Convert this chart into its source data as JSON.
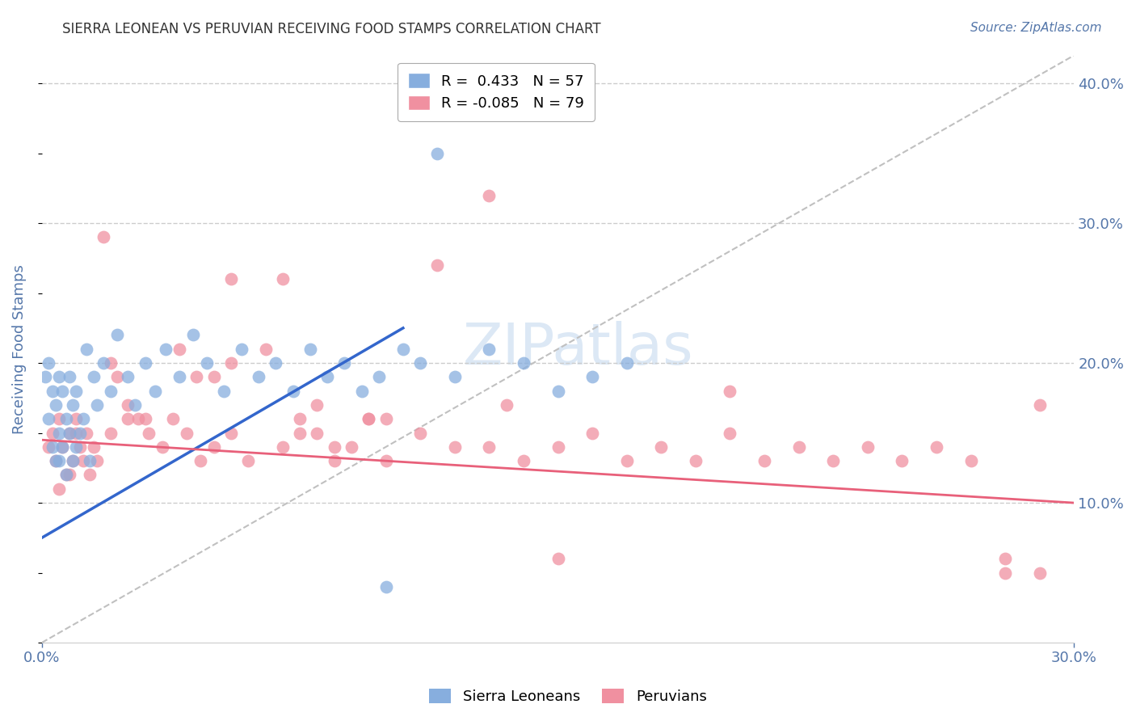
{
  "title": "SIERRA LEONEAN VS PERUVIAN RECEIVING FOOD STAMPS CORRELATION CHART",
  "source": "Source: ZipAtlas.com",
  "ylabel": "Receiving Food Stamps",
  "xlim": [
    0.0,
    0.3
  ],
  "ylim": [
    0.0,
    0.42
  ],
  "xtick_positions": [
    0.0,
    0.3
  ],
  "xtick_labels": [
    "0.0%",
    "30.0%"
  ],
  "ytick_positions": [
    0.1,
    0.2,
    0.3,
    0.4
  ],
  "ytick_labels": [
    "10.0%",
    "20.0%",
    "30.0%",
    "40.0%"
  ],
  "grid_color": "#cccccc",
  "background_color": "#ffffff",
  "sierra_color": "#87AEDE",
  "peruvian_color": "#F090A0",
  "sierra_line_color": "#3366cc",
  "peruvian_line_color": "#e8607a",
  "diagonal_color": "#c0c0c0",
  "axis_label_color": "#5577aa",
  "title_color": "#333333",
  "watermark_color": "#dce8f5",
  "sierra_R": 0.433,
  "sierra_N": 57,
  "peruvian_R": -0.085,
  "peruvian_N": 79,
  "sierra_line_x0": 0.0,
  "sierra_line_y0": 0.075,
  "sierra_line_x1": 0.105,
  "sierra_line_y1": 0.225,
  "peruvian_line_x0": 0.0,
  "peruvian_line_y0": 0.145,
  "peruvian_line_x1": 0.3,
  "peruvian_line_y1": 0.1,
  "sierra_x": [
    0.001,
    0.002,
    0.002,
    0.003,
    0.003,
    0.004,
    0.004,
    0.005,
    0.005,
    0.005,
    0.006,
    0.006,
    0.007,
    0.007,
    0.008,
    0.008,
    0.009,
    0.009,
    0.01,
    0.01,
    0.011,
    0.012,
    0.013,
    0.014,
    0.015,
    0.016,
    0.018,
    0.02,
    0.022,
    0.025,
    0.027,
    0.03,
    0.033,
    0.036,
    0.04,
    0.044,
    0.048,
    0.053,
    0.058,
    0.063,
    0.068,
    0.073,
    0.078,
    0.083,
    0.088,
    0.093,
    0.098,
    0.105,
    0.11,
    0.115,
    0.12,
    0.13,
    0.14,
    0.15,
    0.16,
    0.17,
    0.1
  ],
  "sierra_y": [
    0.19,
    0.2,
    0.16,
    0.14,
    0.18,
    0.13,
    0.17,
    0.15,
    0.19,
    0.13,
    0.14,
    0.18,
    0.16,
    0.12,
    0.15,
    0.19,
    0.13,
    0.17,
    0.14,
    0.18,
    0.15,
    0.16,
    0.21,
    0.13,
    0.19,
    0.17,
    0.2,
    0.18,
    0.22,
    0.19,
    0.17,
    0.2,
    0.18,
    0.21,
    0.19,
    0.22,
    0.2,
    0.18,
    0.21,
    0.19,
    0.2,
    0.18,
    0.21,
    0.19,
    0.2,
    0.18,
    0.19,
    0.21,
    0.2,
    0.35,
    0.19,
    0.21,
    0.2,
    0.18,
    0.19,
    0.2,
    0.04
  ],
  "peruvian_x": [
    0.002,
    0.003,
    0.004,
    0.005,
    0.006,
    0.007,
    0.008,
    0.009,
    0.01,
    0.011,
    0.012,
    0.013,
    0.014,
    0.015,
    0.016,
    0.018,
    0.02,
    0.022,
    0.025,
    0.028,
    0.031,
    0.035,
    0.038,
    0.042,
    0.046,
    0.05,
    0.055,
    0.06,
    0.065,
    0.07,
    0.075,
    0.08,
    0.085,
    0.09,
    0.095,
    0.1,
    0.11,
    0.12,
    0.13,
    0.14,
    0.15,
    0.16,
    0.17,
    0.18,
    0.19,
    0.2,
    0.21,
    0.22,
    0.23,
    0.24,
    0.25,
    0.26,
    0.27,
    0.28,
    0.29,
    0.115,
    0.135,
    0.13,
    0.07,
    0.04,
    0.05,
    0.025,
    0.055,
    0.075,
    0.085,
    0.095,
    0.15,
    0.29,
    0.28,
    0.08,
    0.055,
    0.045,
    0.03,
    0.02,
    0.01,
    0.008,
    0.005,
    0.1,
    0.2
  ],
  "peruvian_y": [
    0.14,
    0.15,
    0.13,
    0.16,
    0.14,
    0.12,
    0.15,
    0.13,
    0.16,
    0.14,
    0.13,
    0.15,
    0.12,
    0.14,
    0.13,
    0.29,
    0.2,
    0.19,
    0.17,
    0.16,
    0.15,
    0.14,
    0.16,
    0.15,
    0.13,
    0.14,
    0.15,
    0.13,
    0.21,
    0.14,
    0.16,
    0.15,
    0.13,
    0.14,
    0.16,
    0.13,
    0.15,
    0.14,
    0.32,
    0.13,
    0.14,
    0.15,
    0.13,
    0.14,
    0.13,
    0.15,
    0.13,
    0.14,
    0.13,
    0.14,
    0.13,
    0.14,
    0.13,
    0.05,
    0.05,
    0.27,
    0.17,
    0.14,
    0.26,
    0.21,
    0.19,
    0.16,
    0.2,
    0.15,
    0.14,
    0.16,
    0.06,
    0.17,
    0.06,
    0.17,
    0.26,
    0.19,
    0.16,
    0.15,
    0.15,
    0.12,
    0.11,
    0.16,
    0.18
  ]
}
